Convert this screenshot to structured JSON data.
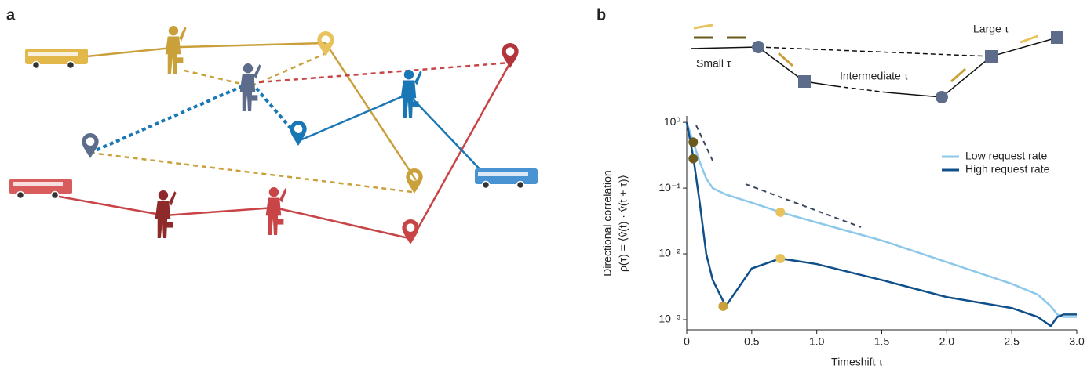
{
  "panels": {
    "a": {
      "label": "a"
    },
    "b": {
      "label": "b",
      "diagram_labels": [
        "Small τ",
        "Intermediate τ",
        "Large τ"
      ]
    }
  },
  "chart_data": {
    "type": "line",
    "x_label": "Timeshift τ",
    "y_label": [
      "Directional correlation",
      "ρ(τ) = ⟨v̂(t) · v̂(t + τ)⟩"
    ],
    "x": [
      0,
      0.05,
      0.1,
      0.15,
      0.2,
      0.3,
      0.5,
      0.72,
      1.0,
      1.5,
      2.0,
      2.5,
      2.7,
      2.8,
      2.85,
      2.9,
      3.0
    ],
    "series": [
      {
        "name": "Low request rate",
        "color": "#8cc8ea",
        "values": [
          1.0,
          0.5,
          0.25,
          0.14,
          0.1,
          0.08,
          0.06,
          0.043,
          0.03,
          0.016,
          0.0075,
          0.0035,
          0.0024,
          0.0016,
          0.0012,
          0.0011,
          0.0011
        ]
      },
      {
        "name": "High request rate",
        "color": "#0f4f8a",
        "values": [
          1.0,
          0.3,
          0.06,
          0.01,
          0.004,
          0.0016,
          0.006,
          0.0085,
          0.007,
          0.004,
          0.0022,
          0.0015,
          0.0011,
          0.0008,
          0.0011,
          0.0012,
          0.0012
        ]
      }
    ],
    "points": {
      "x": [
        0.05,
        0.05,
        0.28,
        0.72,
        0.72
      ],
      "y": [
        0.5,
        0.28,
        0.0016,
        0.043,
        0.0085
      ],
      "colors": [
        "#6b5a1e",
        "#6b5a1e",
        "#c9a03a",
        "#e8c25a",
        "#e8c25a"
      ]
    },
    "xlim": [
      0,
      3.0
    ],
    "xticks": [
      0,
      0.5,
      {
        "value": 1,
        "label": "1.0"
      },
      1.5,
      {
        "value": 2,
        "label": "2.0"
      },
      2.5,
      {
        "value": 3,
        "label": "3.0"
      }
    ],
    "ylim": [
      0.0007,
      1.25
    ],
    "yticks": [
      {
        "value": 1,
        "label": "10⁰"
      },
      {
        "value": 0.1,
        "label": "10⁻¹"
      },
      {
        "value": 0.01,
        "label": "10⁻²"
      },
      {
        "value": 0.001,
        "label": "10⁻³"
      }
    ],
    "log_y": true,
    "legend": "right"
  }
}
